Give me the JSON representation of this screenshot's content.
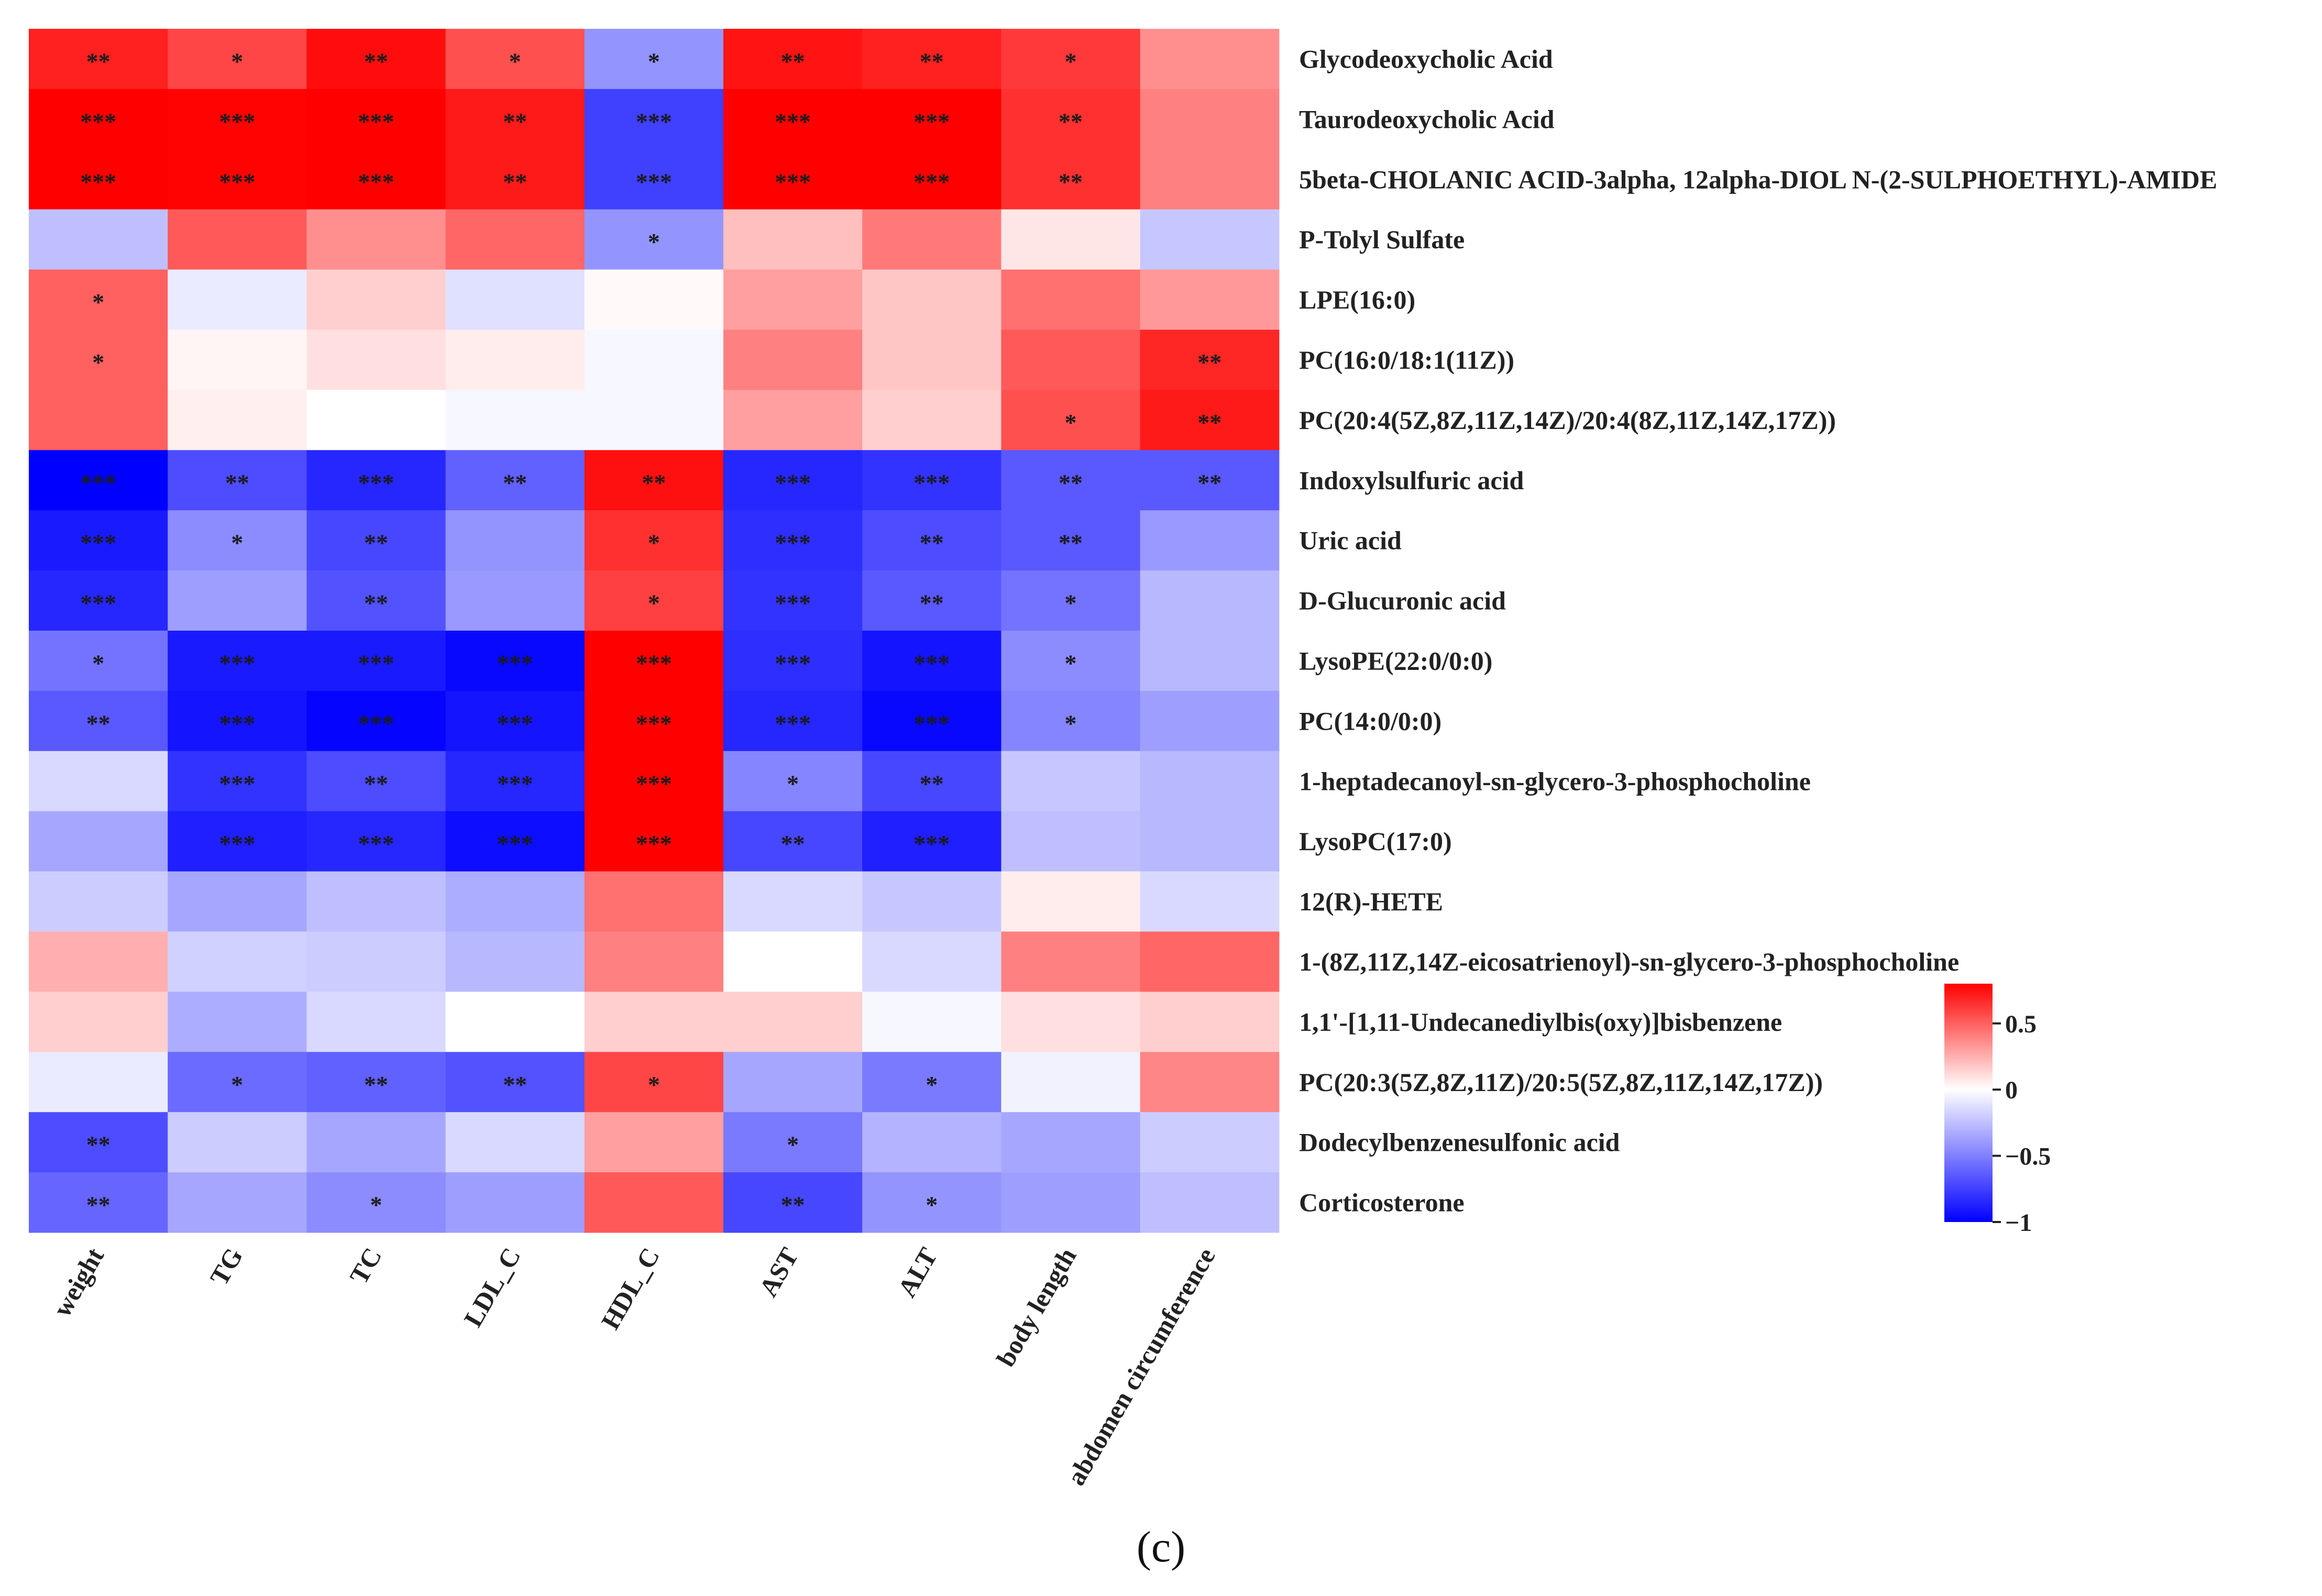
{
  "panel_label": "(c)",
  "chart_data": {
    "type": "heatmap",
    "title": "",
    "columns": [
      "weight",
      "TG",
      "TC",
      "LDL_C",
      "HDL_C",
      "AST",
      "ALT",
      "body length",
      "abdomen circumference"
    ],
    "rows": [
      "Glycodeoxycholic Acid",
      "Taurodeoxycholic Acid",
      "5beta-CHOLANIC ACID-3alpha, 12alpha-DIOL N-(2-SULPHOETHYL)-AMIDE",
      "P-Tolyl Sulfate",
      "LPE(16:0)",
      "PC(16:0/18:1(11Z))",
      "PC(20:4(5Z,8Z,11Z,14Z)/20:4(8Z,11Z,14Z,17Z))",
      "Indoxylsulfuric acid",
      "Uric acid",
      "D-Glucuronic acid",
      "LysoPE(22:0/0:0)",
      "PC(14:0/0:0)",
      "1-heptadecanoyl-sn-glycero-3-phosphocholine",
      "LysoPC(17:0)",
      "12(R)-HETE",
      "1-(8Z,11Z,14Z-eicosatrienoyl)-sn-glycero-3-phosphocholine",
      "1,1'-[1,11-Undecanediylbis(oxy)]bisbenzene",
      "PC(20:3(5Z,8Z,11Z)/20:5(5Z,8Z,11Z,14Z,17Z))",
      "Dodecylbenzenesulfonic acid",
      "Corticosterone"
    ],
    "values": [
      [
        0.7,
        0.58,
        0.76,
        0.55,
        -0.42,
        0.74,
        0.7,
        0.62,
        0.35
      ],
      [
        0.8,
        0.79,
        0.88,
        0.72,
        -0.75,
        0.83,
        0.8,
        0.65,
        0.4
      ],
      [
        0.8,
        0.79,
        0.88,
        0.72,
        -0.75,
        0.83,
        0.8,
        0.65,
        0.4
      ],
      [
        -0.25,
        0.52,
        0.35,
        0.48,
        -0.42,
        0.2,
        0.42,
        0.08,
        -0.22
      ],
      [
        0.5,
        -0.08,
        0.15,
        -0.12,
        0.02,
        0.3,
        0.18,
        0.45,
        0.32
      ],
      [
        0.5,
        0.03,
        0.1,
        0.06,
        -0.03,
        0.4,
        0.18,
        0.52,
        0.68
      ],
      [
        0.5,
        0.05,
        0.0,
        -0.03,
        -0.03,
        0.3,
        0.15,
        0.55,
        0.72
      ],
      [
        -1.0,
        -0.7,
        -0.85,
        -0.62,
        0.75,
        -0.85,
        -0.8,
        -0.65,
        -0.65
      ],
      [
        -0.9,
        -0.45,
        -0.72,
        -0.42,
        0.65,
        -0.82,
        -0.7,
        -0.65,
        -0.4
      ],
      [
        -0.85,
        -0.38,
        -0.68,
        -0.4,
        0.6,
        -0.8,
        -0.65,
        -0.55,
        -0.28
      ],
      [
        -0.55,
        -0.9,
        -0.9,
        -0.97,
        0.92,
        -0.82,
        -0.92,
        -0.45,
        -0.28
      ],
      [
        -0.65,
        -0.92,
        -0.98,
        -0.92,
        0.95,
        -0.85,
        -0.97,
        -0.48,
        -0.38
      ],
      [
        -0.15,
        -0.8,
        -0.7,
        -0.85,
        0.8,
        -0.48,
        -0.72,
        -0.22,
        -0.28
      ],
      [
        -0.35,
        -0.88,
        -0.85,
        -0.95,
        0.85,
        -0.72,
        -0.88,
        -0.25,
        -0.28
      ],
      [
        -0.2,
        -0.35,
        -0.25,
        -0.32,
        0.45,
        -0.15,
        -0.22,
        0.06,
        -0.15
      ],
      [
        0.25,
        -0.18,
        -0.2,
        -0.28,
        0.4,
        0.0,
        -0.15,
        0.4,
        0.48
      ],
      [
        0.15,
        -0.32,
        -0.15,
        0.0,
        0.15,
        0.15,
        -0.03,
        0.1,
        0.15
      ],
      [
        -0.08,
        -0.58,
        -0.62,
        -0.68,
        0.58,
        -0.35,
        -0.52,
        -0.05,
        0.38
      ],
      [
        -0.7,
        -0.2,
        -0.35,
        -0.15,
        0.3,
        -0.52,
        -0.3,
        -0.35,
        -0.2
      ],
      [
        -0.6,
        -0.35,
        -0.45,
        -0.38,
        0.52,
        -0.72,
        -0.42,
        -0.38,
        -0.25
      ]
    ],
    "significance": [
      [
        "**",
        "*",
        "**",
        "*",
        "*",
        "**",
        "**",
        "*",
        ""
      ],
      [
        "***",
        "***",
        "***",
        "**",
        "***",
        "***",
        "***",
        "**",
        ""
      ],
      [
        "***",
        "***",
        "***",
        "**",
        "***",
        "***",
        "***",
        "**",
        ""
      ],
      [
        "",
        "",
        "",
        "",
        "*",
        "",
        "",
        "",
        ""
      ],
      [
        "*",
        "",
        "",
        "",
        "",
        "",
        "",
        "",
        ""
      ],
      [
        "*",
        "",
        "",
        "",
        "",
        "",
        "",
        "",
        "**"
      ],
      [
        "",
        "",
        "",
        "",
        "",
        "",
        "",
        "*",
        "**"
      ],
      [
        "***",
        "**",
        "***",
        "**",
        "**",
        "***",
        "***",
        "**",
        "**"
      ],
      [
        "***",
        "*",
        "**",
        "",
        "*",
        "***",
        "**",
        "**",
        ""
      ],
      [
        "***",
        "",
        "**",
        "",
        "*",
        "***",
        "**",
        "*",
        ""
      ],
      [
        "*",
        "***",
        "***",
        "***",
        "***",
        "***",
        "***",
        "*",
        ""
      ],
      [
        "**",
        "***",
        "***",
        "***",
        "***",
        "***",
        "***",
        "*",
        ""
      ],
      [
        "",
        "***",
        "**",
        "***",
        "***",
        "*",
        "**",
        "",
        ""
      ],
      [
        "",
        "***",
        "***",
        "***",
        "***",
        "**",
        "***",
        "",
        ""
      ],
      [
        "",
        "",
        "",
        "",
        "",
        "",
        "",
        "",
        ""
      ],
      [
        "",
        "",
        "",
        "",
        "",
        "",
        "",
        "",
        ""
      ],
      [
        "",
        "",
        "",
        "",
        "",
        "",
        "",
        "",
        ""
      ],
      [
        "",
        "*",
        "**",
        "**",
        "*",
        "",
        "*",
        "",
        ""
      ],
      [
        "**",
        "",
        "",
        "",
        "",
        "*",
        "",
        "",
        ""
      ],
      [
        "**",
        "",
        "*",
        "",
        "",
        "**",
        "*",
        "",
        ""
      ]
    ],
    "colorbar": {
      "range": [
        -1,
        0.8
      ],
      "ticks": [
        0.5,
        0,
        -0.5,
        -1
      ],
      "tick_labels": [
        "0.5",
        "0",
        "−0.5",
        "−1"
      ],
      "colors": {
        "low": "#0000ff",
        "mid": "#ffffff",
        "high": "#ff0000"
      }
    }
  }
}
